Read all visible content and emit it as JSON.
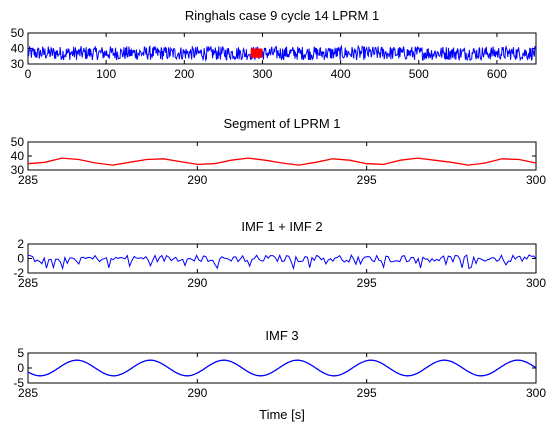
{
  "chart_data": [
    {
      "type": "line",
      "title": "Ringhals case 9 cycle 14 LPRM 1",
      "xlabel": "",
      "ylabel": "",
      "xlim": [
        0,
        650
      ],
      "ylim": [
        30,
        50
      ],
      "xticks": [
        0,
        100,
        200,
        300,
        400,
        500,
        600
      ],
      "yticks": [
        30,
        40,
        50
      ],
      "series": [
        {
          "color": "#0000ff",
          "kind": "noisy-signal",
          "mean": 37,
          "amplitude": 4.5,
          "x": [
            0,
            650
          ]
        },
        {
          "color": "#ff0000",
          "kind": "highlighted-segment",
          "x": [
            285,
            300
          ],
          "y_range": [
            34,
            40
          ]
        }
      ]
    },
    {
      "type": "line",
      "title": "Segment of LPRM 1",
      "xlabel": "",
      "ylabel": "",
      "xlim": [
        285,
        300
      ],
      "ylim": [
        30,
        50
      ],
      "xticks": [
        285,
        290,
        295,
        300
      ],
      "yticks": [
        30,
        40,
        50
      ],
      "series": [
        {
          "color": "#ff0000",
          "x": [
            285,
            285.5,
            286,
            286.5,
            287,
            287.5,
            288,
            288.5,
            289,
            289.5,
            290,
            290.5,
            291,
            291.5,
            292,
            292.5,
            293,
            293.5,
            294,
            294.5,
            295,
            295.5,
            296,
            296.5,
            297,
            297.5,
            298,
            298.5,
            299,
            299.5,
            300
          ],
          "y": [
            34.5,
            35.5,
            38.5,
            37.5,
            35,
            33.5,
            35.5,
            37.5,
            38,
            36,
            34,
            34.5,
            37,
            38.5,
            37,
            35,
            33.5,
            35.5,
            38,
            37,
            34.5,
            34,
            37,
            38.5,
            37,
            35.5,
            33.5,
            35,
            38,
            37.5,
            35
          ]
        }
      ]
    },
    {
      "type": "line",
      "title": "IMF 1 + IMF 2",
      "xlabel": "",
      "ylabel": "",
      "xlim": [
        285,
        300
      ],
      "ylim": [
        -2,
        2
      ],
      "xticks": [
        285,
        290,
        295,
        300
      ],
      "yticks": [
        -2,
        0,
        2
      ],
      "series": [
        {
          "color": "#0000ff",
          "kind": "noise",
          "mean": 0,
          "amplitude": 0.8,
          "x": [
            285,
            300
          ]
        }
      ]
    },
    {
      "type": "line",
      "title": "IMF 3",
      "xlabel": "Time   [s]",
      "ylabel": "",
      "xlim": [
        285,
        300
      ],
      "ylim": [
        -5,
        5
      ],
      "xticks": [
        285,
        290,
        295,
        300
      ],
      "yticks": [
        -5,
        0,
        5
      ],
      "series": [
        {
          "color": "#0000ff",
          "kind": "sine",
          "amplitude": 2.6,
          "period": 2.17,
          "x": [
            285,
            300
          ]
        }
      ]
    }
  ]
}
